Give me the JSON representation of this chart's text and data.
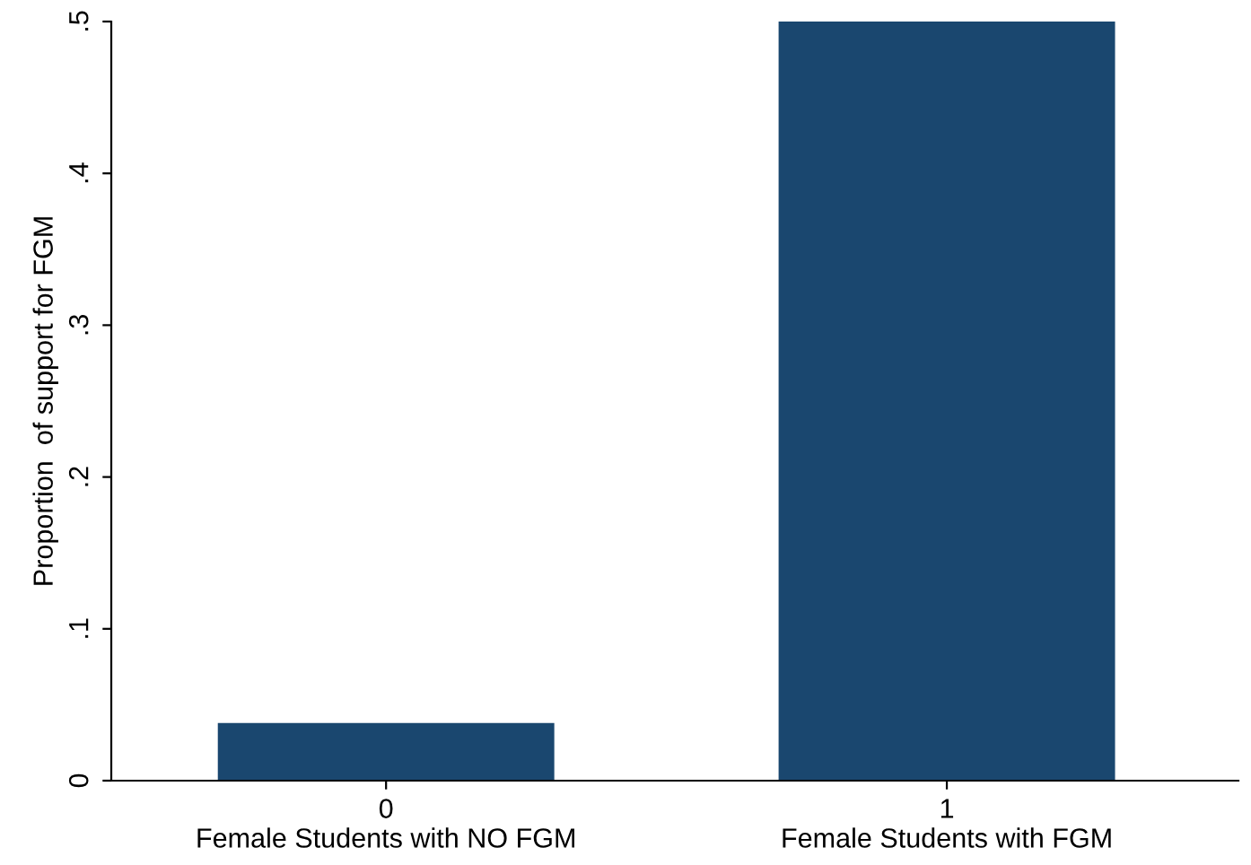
{
  "chart_data": {
    "type": "bar",
    "categories": [
      "0\nFemale Students with NO FGM",
      "1\nFemale Students with FGM"
    ],
    "values": [
      0.038,
      0.5
    ],
    "color": "#1a476f",
    "ylabel": "Proportion  of support for FGM",
    "ylim": [
      0,
      0.5
    ],
    "yticks": [
      0,
      {
        "value": 0.1,
        "label": ".1"
      },
      {
        "value": 0.2,
        "label": ".2"
      },
      {
        "value": 0.3,
        "label": ".3"
      },
      {
        "value": 0.4,
        "label": ".4"
      },
      {
        "value": 0.5,
        "label": ".5"
      }
    ],
    "grid": false
  }
}
